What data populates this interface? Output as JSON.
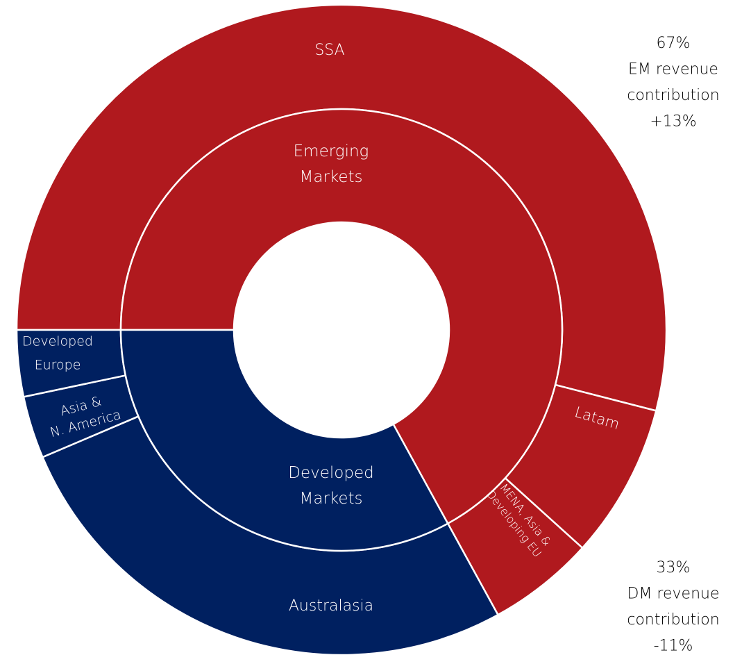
{
  "chart_data": {
    "type": "sunburst",
    "inner": {
      "labels": [
        [
          "Emerging",
          "Markets"
        ],
        [
          "Developed",
          "Markets"
        ]
      ],
      "values": [
        67,
        33
      ],
      "colors": [
        "#b0191e",
        "#002060"
      ]
    },
    "outer": {
      "labels": [
        [
          "SSA"
        ],
        [
          "Latam"
        ],
        [
          "MENA, Asia &",
          "Developing EU"
        ],
        [
          "Australasia"
        ],
        [
          "Asia &",
          "N. America"
        ],
        [
          "Developed",
          "Europe"
        ]
      ],
      "values": [
        54,
        7.7,
        5.3,
        26.6,
        3.1,
        3.3
      ],
      "colors": [
        "#b0191e",
        "#b0191e",
        "#b0191e",
        "#002060",
        "#002060",
        "#002060"
      ]
    },
    "annotations": [
      {
        "lines": [
          "67%",
          "EM revenue",
          "contribution",
          "+13%"
        ]
      },
      {
        "lines": [
          "33%",
          "DM revenue",
          "contribution",
          "-11%"
        ]
      }
    ]
  }
}
